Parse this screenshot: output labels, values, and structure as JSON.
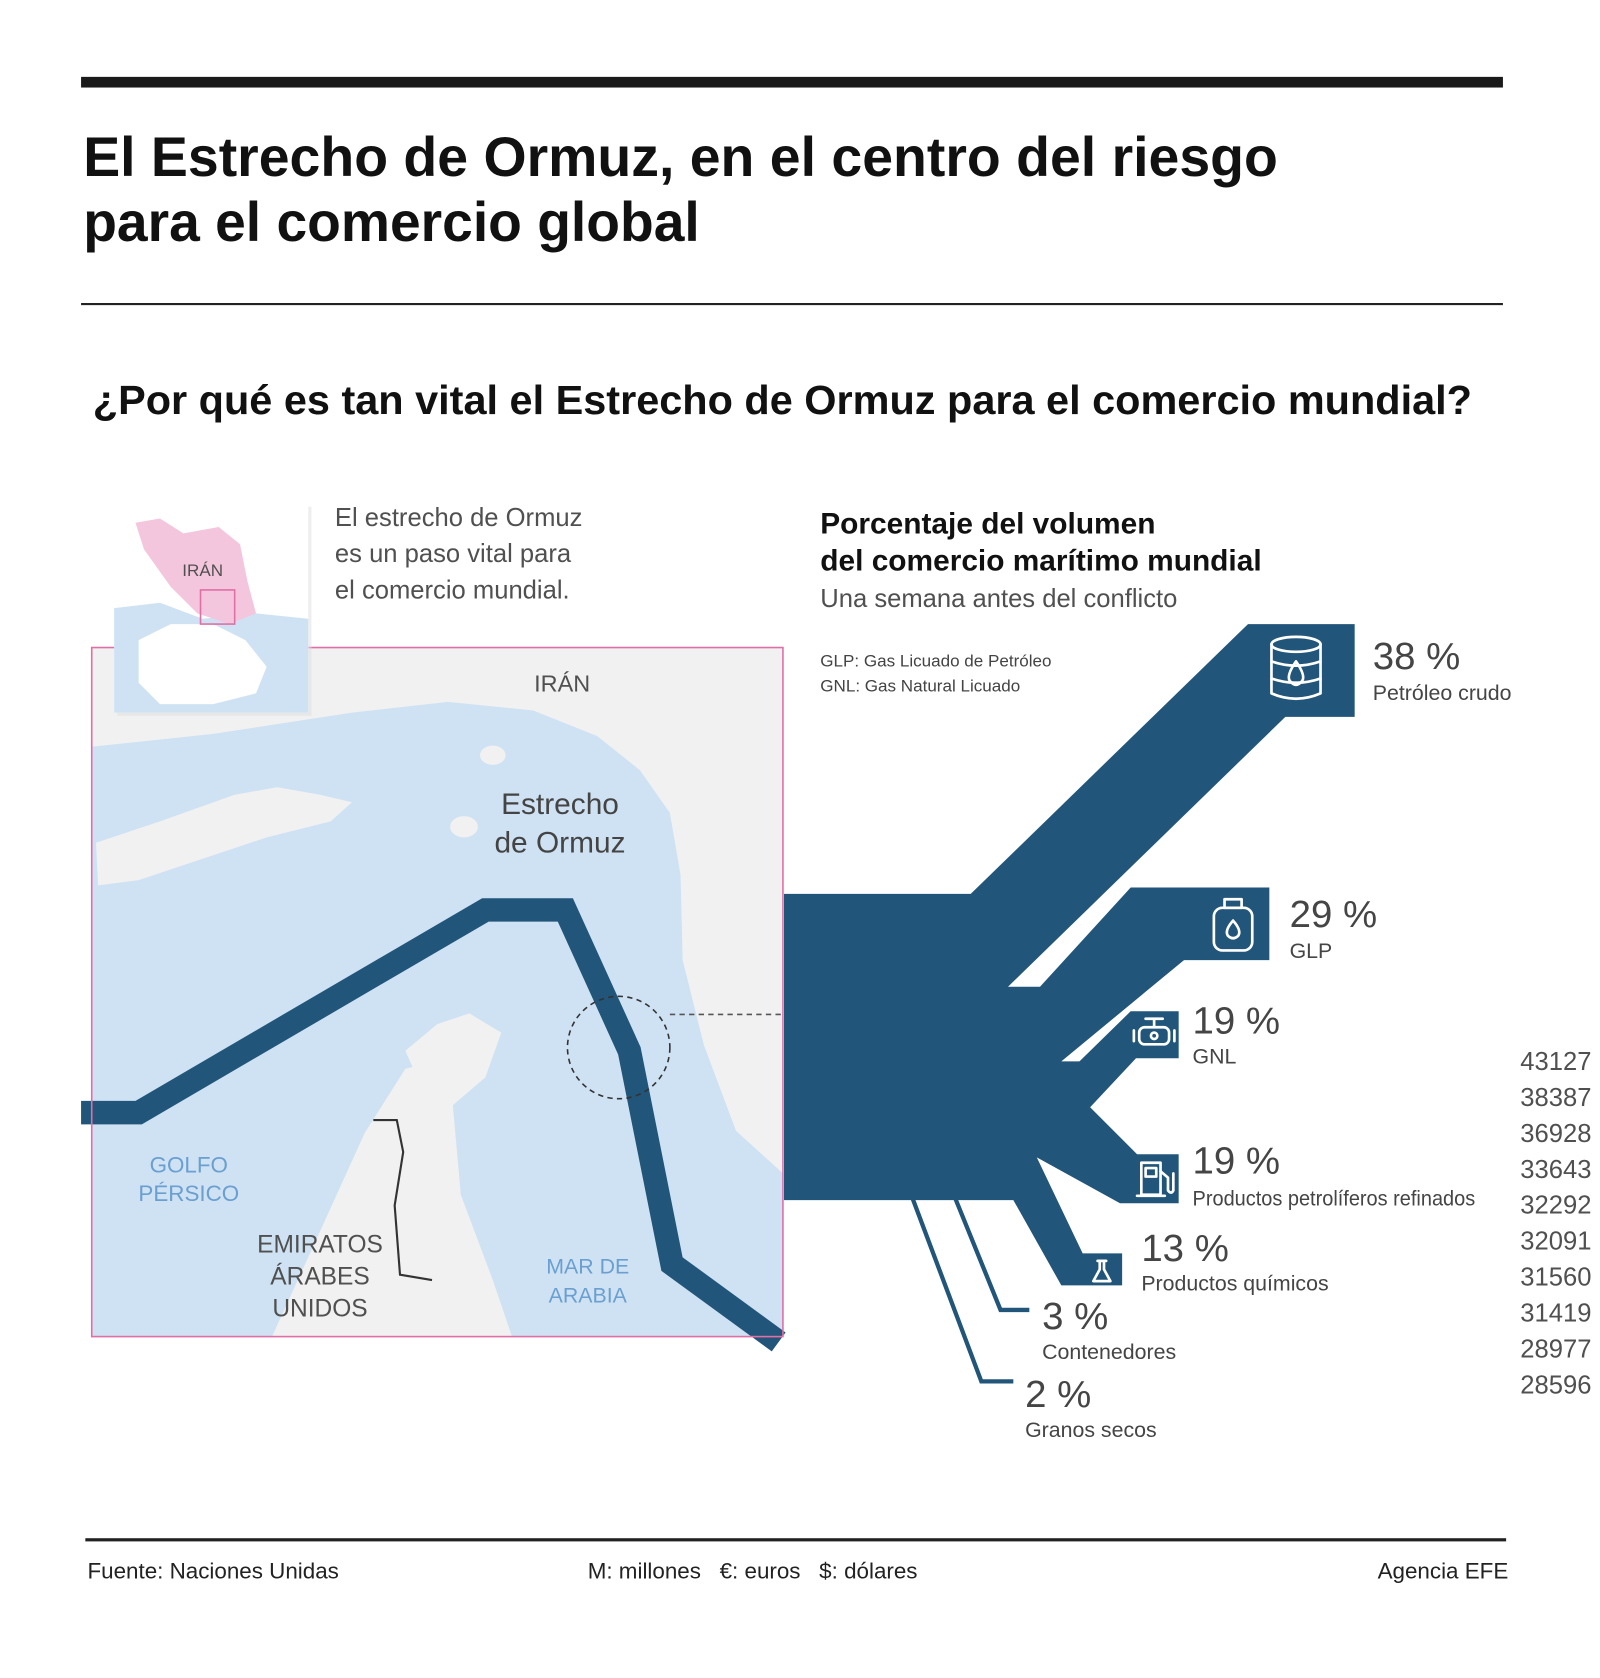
{
  "header": {
    "title_line1": "El Estrecho de Ormuz, en el centro del riesgo",
    "title_line2": "para el comercio global",
    "question": "¿Por qué es tan vital el Estrecho de Ormuz para el comercio mundial?"
  },
  "intro": [
    "El estrecho de Ormuz",
    "es un paso vital para",
    "el comercio mundial."
  ],
  "map": {
    "inset_label": "IRÁN",
    "iran": "IRÁN",
    "strait": [
      "Estrecho",
      "de Ormuz"
    ],
    "gulf": [
      "GOLFO",
      "PÉRSICO"
    ],
    "uae": [
      "EMIRATOS",
      "ÁRABES",
      "UNIDOS"
    ],
    "sea": [
      "MAR DE",
      "ARABIA"
    ],
    "colors": {
      "route": "#22557a",
      "water": "#cfe2f3",
      "land": "#f1f1f1",
      "frame": "#e06fa5",
      "iran_inset": "#f4c6de"
    }
  },
  "chart_data": {
    "type": "sankey",
    "title": "Porcentaje del volumen del comercio marítimo mundial",
    "title_lines": [
      "Porcentaje del volumen",
      "del comercio marítimo mundial"
    ],
    "subtitle": "Una semana antes del conflicto",
    "notes": [
      "GLP: Gas Licuado de Petróleo",
      "GNL: Gas Natural Licuado"
    ],
    "color": "#22557a",
    "unit": "%",
    "flows": [
      {
        "label": "Petróleo crudo",
        "value": 38,
        "display": "38 %",
        "icon": "oil-barrel-icon"
      },
      {
        "label": "GLP",
        "value": 29,
        "display": "29 %",
        "icon": "gas-cylinder-icon"
      },
      {
        "label": "GNL",
        "value": 19,
        "display": "19 %",
        "icon": "gas-valve-icon"
      },
      {
        "label": "Productos petrolíferos refinados",
        "value": 19,
        "display": "19 %",
        "icon": "fuel-pump-icon"
      },
      {
        "label": "Productos químicos",
        "value": 13,
        "display": "13 %",
        "icon": "flask-icon"
      },
      {
        "label": "Contenedores",
        "value": 3,
        "display": "3 %"
      },
      {
        "label": "Granos secos",
        "value": 2,
        "display": "2 %"
      }
    ],
    "stray_numbers": [
      "43127",
      "38387",
      "36928",
      "33643",
      "32292",
      "32091",
      "31560",
      "31419",
      "28977",
      "28596"
    ]
  },
  "footer": {
    "source": "Fuente: Naciones Unidas",
    "units": "M: millones   €: euros   $: dólares",
    "credit": "Agencia EFE"
  }
}
